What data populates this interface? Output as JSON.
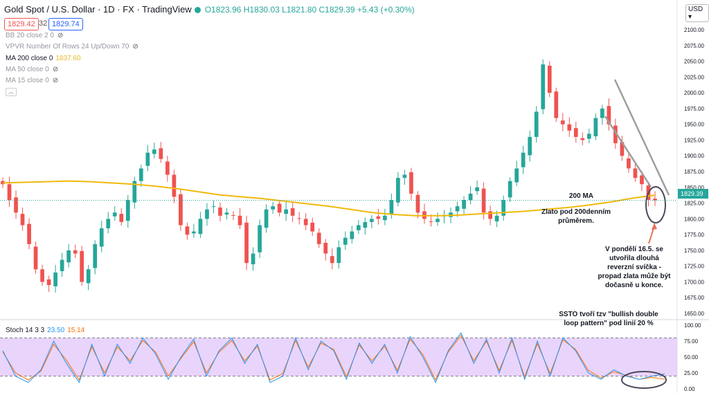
{
  "header": {
    "symbol": "Gold Spot / U.S. Dollar · 1D · FX · TradingView",
    "ohlc": "O1823.96 H1830.03 L1821.80 C1829.39 +5.43 (+0.30%)",
    "bid": "1829.42",
    "spread": "32",
    "ask": "1829.74"
  },
  "indicators": {
    "bb": "BB 20 close 2 0",
    "vpvr": "VPVR Number Of Rows 24 Up/Down 70",
    "ma200": "MA 200 close 0",
    "ma200_value": "1837.60",
    "ma50": "MA 50 close 0",
    "ma15": "MA 15 close 0"
  },
  "currency": "USD",
  "price_label": "1829.39",
  "stoch": {
    "label": "Stoch 14 3 3",
    "k_value": "23.50",
    "d_value": "15.14"
  },
  "annotations": {
    "ma_label": "200 MA",
    "below_ma": "Zlato pod 200denním průměrem.",
    "monday": "V pondělí 16.5. se utvořila dlouhá reverzní svíčka - propad zlata může být dočasně u konce.",
    "ssto": "SSTO tvoří tzv \"bullish double loop pattern\" pod linií 20 %"
  },
  "colors": {
    "up": "#26a69a",
    "down": "#ef5350",
    "ma": "#f0b90b",
    "stoch_k": "#2196f3",
    "stoch_d": "#ff6d00",
    "stoch_band": "#e1c6fb"
  },
  "chart_data": {
    "type": "candlestick",
    "price_axis": {
      "min": 1650,
      "max": 2100,
      "ticks": [
        "2100.00",
        "2075.00",
        "2050.00",
        "2025.00",
        "2000.00",
        "1975.00",
        "1950.00",
        "1925.00",
        "1900.00",
        "1875.00",
        "1850.00",
        "1825.00",
        "1800.00",
        "1775.00",
        "1750.00",
        "1725.00",
        "1700.00",
        "1675.00",
        "1650.00"
      ]
    },
    "stoch_axis": {
      "min": 0,
      "max": 100,
      "ticks": [
        "100.00",
        "75.00",
        "50.00",
        "25.00",
        "0.00"
      ],
      "bands": [
        20,
        80
      ]
    },
    "close_path": [
      1855,
      1830,
      1810,
      1790,
      1760,
      1720,
      1700,
      1695,
      1715,
      1735,
      1750,
      1745,
      1700,
      1720,
      1760,
      1785,
      1800,
      1810,
      1795,
      1830,
      1860,
      1880,
      1905,
      1910,
      1895,
      1870,
      1835,
      1790,
      1775,
      1780,
      1800,
      1815,
      1820,
      1805,
      1810,
      1805,
      1790,
      1730,
      1745,
      1790,
      1815,
      1820,
      1810,
      1815,
      1805,
      1800,
      1790,
      1780,
      1760,
      1745,
      1730,
      1755,
      1770,
      1780,
      1790,
      1795,
      1800,
      1800,
      1805,
      1830,
      1865,
      1870,
      1840,
      1810,
      1800,
      1795,
      1800,
      1805,
      1810,
      1820,
      1830,
      1840,
      1850,
      1810,
      1800,
      1805,
      1830,
      1860,
      1880,
      1905,
      1930,
      1970,
      2045,
      2000,
      1960,
      1950,
      1940,
      1930,
      1925,
      1935,
      1960,
      1975,
      1950,
      1920,
      1900,
      1880,
      1865,
      1855,
      1830,
      1829.39
    ],
    "ma200": [
      1857,
      1858,
      1859,
      1860,
      1859,
      1857,
      1855,
      1852,
      1848,
      1843,
      1838,
      1835,
      1832,
      1828,
      1824,
      1820,
      1815,
      1810,
      1807,
      1805,
      1805,
      1806,
      1808,
      1810,
      1812,
      1815,
      1818,
      1822,
      1827,
      1833,
      1837.6
    ],
    "stoch_k": [
      60,
      20,
      10,
      30,
      75,
      40,
      10,
      70,
      20,
      70,
      40,
      80,
      55,
      15,
      50,
      78,
      20,
      60,
      80,
      40,
      70,
      10,
      20,
      80,
      30,
      75,
      60,
      15,
      72,
      40,
      70,
      25,
      82,
      50,
      10,
      60,
      88,
      40,
      78,
      25,
      80,
      15,
      75,
      20,
      80,
      60,
      25,
      15,
      30,
      20,
      15,
      20,
      23.5
    ],
    "stoch_d": [
      58,
      25,
      14,
      28,
      70,
      45,
      14,
      66,
      25,
      66,
      44,
      76,
      58,
      20,
      48,
      74,
      25,
      58,
      76,
      44,
      67,
      14,
      24,
      76,
      34,
      72,
      62,
      19,
      69,
      44,
      67,
      29,
      78,
      54,
      14,
      58,
      84,
      44,
      75,
      29,
      76,
      19,
      71,
      24,
      77,
      62,
      29,
      17,
      27,
      21,
      15,
      18,
      15.14
    ]
  }
}
